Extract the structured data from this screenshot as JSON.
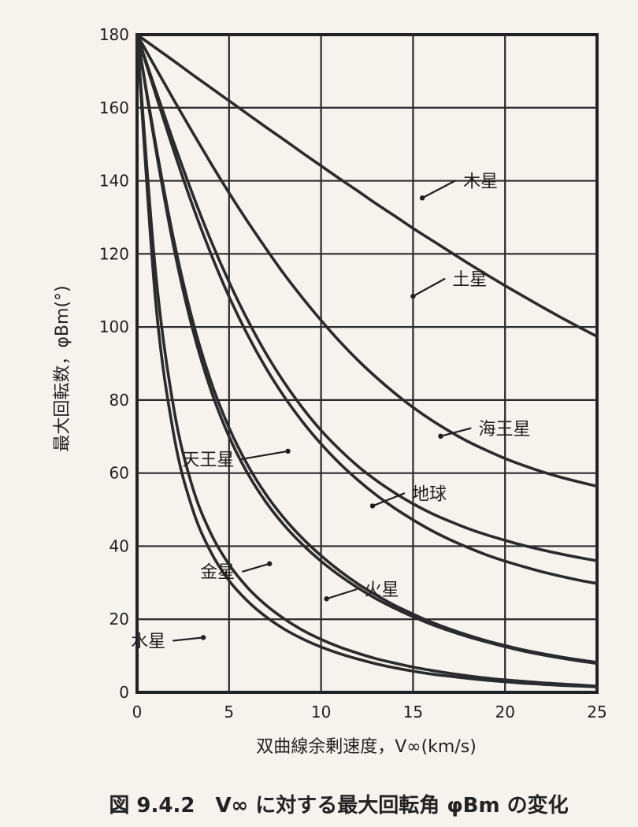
{
  "chart_data": {
    "type": "line",
    "caption": "図 9.4.2　V∞ に対する最大回転角 φBm の変化",
    "xlabel": "双曲線余剰速度，V∞(km/s)",
    "ylabel": "最大回転数，φBm(°)",
    "xlim": [
      0,
      25
    ],
    "ylim": [
      0,
      180
    ],
    "x_ticks": [
      0,
      5,
      10,
      15,
      20,
      25
    ],
    "y_ticks": [
      0,
      20,
      40,
      60,
      80,
      100,
      120,
      140,
      160,
      180
    ],
    "x_tick_labels": [
      "0",
      "5",
      "10",
      "15",
      "20",
      "25"
    ],
    "y_tick_labels": [
      "0",
      "20",
      "40",
      "60",
      "80",
      "100",
      "120",
      "140",
      "160",
      "180"
    ],
    "grid": true,
    "x": [
      0,
      1,
      2,
      3,
      4,
      5,
      6,
      7,
      8,
      9,
      10,
      11,
      12,
      13,
      14,
      15,
      16,
      17,
      18,
      19,
      20,
      21,
      22,
      23,
      24,
      25
    ],
    "series": [
      {
        "name": "木星",
        "values": [
          180,
          176.4,
          172.8,
          169.1,
          165.5,
          161.9,
          158.3,
          154.7,
          151.2,
          147.6,
          144.1,
          140.6,
          137.2,
          133.7,
          130.4,
          127.0,
          123.8,
          120.6,
          117.4,
          114.3,
          111.3,
          108.4,
          105.5,
          102.7,
          100.0,
          97.4
        ]
      },
      {
        "name": "土星",
        "values": [
          180,
          171.0,
          162.1,
          153.4,
          144.9,
          136.7,
          128.9,
          121.5,
          114.4,
          107.9,
          101.8,
          96.1,
          90.9,
          86.2,
          81.9,
          78.0,
          74.5,
          71.4,
          68.6,
          66.2,
          64.0,
          62.1,
          60.4,
          58.9,
          57.6,
          56.4
        ]
      },
      {
        "name": "海王星",
        "values": [
          180,
          165.0,
          150.4,
          136.6,
          123.8,
          112.3,
          102.0,
          92.8,
          84.8,
          77.8,
          71.7,
          66.5,
          61.9,
          58.0,
          54.6,
          51.6,
          49.0,
          46.8,
          44.8,
          43.1,
          41.6,
          40.2,
          39.0,
          37.9,
          36.9,
          36.0
        ]
      },
      {
        "name": "天王星",
        "values": [
          180,
          163.9,
          148.2,
          133.5,
          120.2,
          108.3,
          97.9,
          88.8,
          80.9,
          74.0,
          68.0,
          62.7,
          58.1,
          54.0,
          50.4,
          47.2,
          44.3,
          41.8,
          39.6,
          37.6,
          35.9,
          34.4,
          33.0,
          31.8,
          30.7,
          29.8
        ]
      },
      {
        "name": "地球",
        "values": [
          180,
          150.3,
          123.7,
          102.1,
          85.3,
          72.4,
          62.3,
          54.2,
          47.6,
          42.1,
          37.4,
          33.3,
          29.7,
          26.6,
          23.8,
          21.4,
          19.2,
          17.3,
          15.6,
          14.1,
          12.8,
          11.6,
          10.6,
          9.7,
          8.9,
          8.2
        ]
      },
      {
        "name": "金星",
        "values": [
          180,
          149.2,
          121.7,
          99.8,
          82.9,
          70.0,
          60.0,
          52.1,
          45.7,
          40.4,
          35.9,
          32.0,
          28.6,
          25.6,
          23.0,
          20.7,
          18.6,
          16.8,
          15.2,
          13.8,
          12.5,
          11.3,
          10.3,
          9.4,
          8.6,
          7.9
        ]
      },
      {
        "name": "火星",
        "values": [
          180,
          115.4,
          77.6,
          56.4,
          43.6,
          35.0,
          28.7,
          23.9,
          20.1,
          17.0,
          14.5,
          12.4,
          10.7,
          9.2,
          8.0,
          6.9,
          6.0,
          5.2,
          4.5,
          3.9,
          3.4,
          3.0,
          2.6,
          2.3,
          2.0,
          1.7
        ]
      },
      {
        "name": "水星",
        "values": [
          180,
          107.6,
          70.4,
          50.4,
          38.5,
          30.6,
          25.0,
          20.7,
          17.3,
          14.6,
          12.4,
          10.6,
          9.1,
          7.8,
          6.7,
          5.8,
          5.0,
          4.4,
          3.8,
          3.3,
          2.9,
          2.5,
          2.2,
          1.9,
          1.7,
          1.5
        ]
      }
    ],
    "annotations": [
      {
        "series": "木星",
        "text": "木星",
        "x": 15.5,
        "y": 135.3
      },
      {
        "series": "土星",
        "text": "土星",
        "x": 15.0,
        "y": 108.4
      },
      {
        "series": "海王星",
        "text": "海王星",
        "x": 16.5,
        "y": 70.1
      },
      {
        "series": "天王星",
        "text": "天王星",
        "x": 8.2,
        "y": 66.0
      },
      {
        "series": "地球",
        "text": "地球",
        "x": 12.8,
        "y": 51.0
      },
      {
        "series": "金星",
        "text": "金星",
        "x": 7.2,
        "y": 35.2
      },
      {
        "series": "火星",
        "text": "火星",
        "x": 10.3,
        "y": 25.6
      },
      {
        "series": "水星",
        "text": "水星",
        "x": 3.6,
        "y": 15.0
      }
    ]
  }
}
